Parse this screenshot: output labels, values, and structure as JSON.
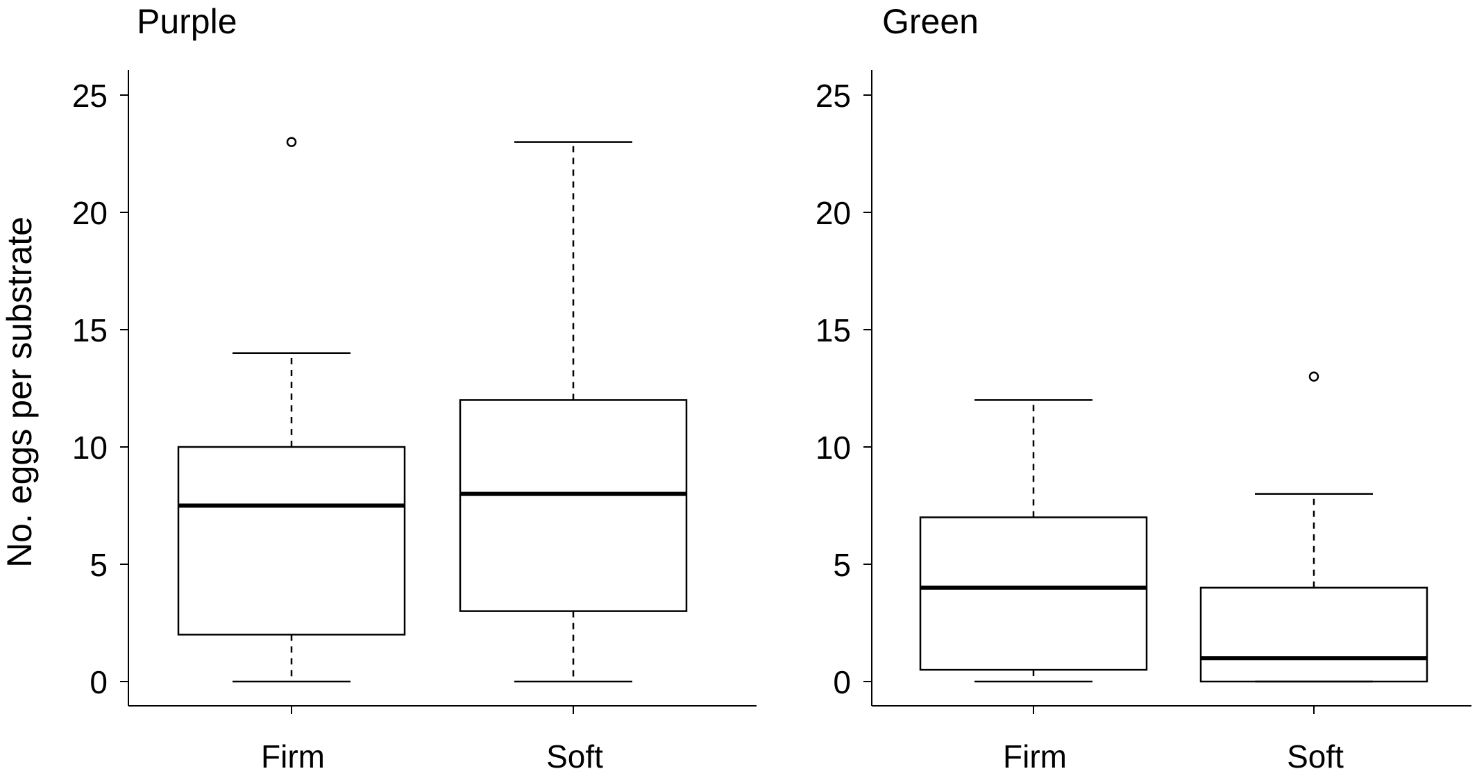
{
  "chart_data": {
    "type": "box",
    "ylabel": "No. eggs per substrate",
    "panels": [
      {
        "title": "Purple",
        "categories": [
          "Firm",
          "Soft"
        ],
        "ylim": [
          0,
          25
        ],
        "yticks": [
          "0",
          "5",
          "10",
          "15",
          "20",
          "25"
        ],
        "boxes": [
          {
            "category": "Firm",
            "whisker_low": 0,
            "q1": 2,
            "median": 7.5,
            "q3": 10,
            "whisker_high": 14,
            "outliers": [
              23
            ]
          },
          {
            "category": "Soft",
            "whisker_low": 0,
            "q1": 3,
            "median": 8,
            "q3": 12,
            "whisker_high": 23,
            "outliers": []
          }
        ]
      },
      {
        "title": "Green",
        "categories": [
          "Firm",
          "Soft"
        ],
        "ylim": [
          0,
          25
        ],
        "yticks": [
          "0",
          "5",
          "10",
          "15",
          "20",
          "25"
        ],
        "boxes": [
          {
            "category": "Firm",
            "whisker_low": 0,
            "q1": 0.5,
            "median": 4,
            "q3": 7,
            "whisker_high": 12,
            "outliers": []
          },
          {
            "category": "Soft",
            "whisker_low": 0,
            "q1": 0,
            "median": 1,
            "q3": 4,
            "whisker_high": 8,
            "outliers": [
              13
            ]
          }
        ]
      }
    ]
  }
}
